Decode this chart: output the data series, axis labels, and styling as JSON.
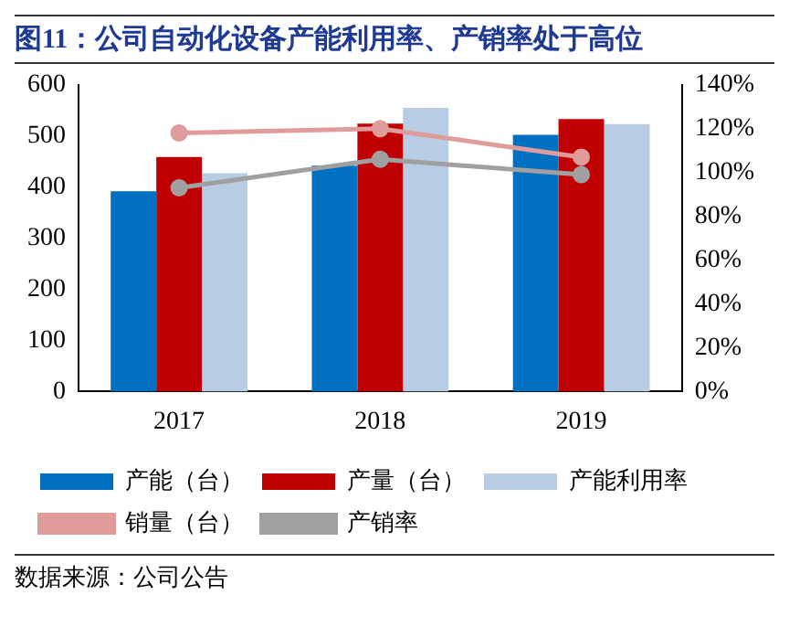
{
  "chart_data": {
    "type": "bar",
    "title": "图11：公司自动化设备产能利用率、产销率处于高位",
    "annotations": [
      "数据来源：公司公告"
    ],
    "categories": [
      "2017",
      "2018",
      "2019"
    ],
    "series": [
      {
        "name": "产能（台）",
        "color": "#0070c0",
        "values": [
          392,
          442,
          502
        ]
      },
      {
        "name": "产量（台）",
        "color": "#c00000",
        "values": [
          459,
          524,
          533
        ]
      },
      {
        "name": "产能利用率",
        "color": "#b8cce4",
        "values": [
          427,
          555,
          523
        ]
      },
      {
        "name": "销量（台）",
        "type": "line",
        "axis": "y2",
        "color": "#e09b9b",
        "values": [
          118,
          120,
          107
        ]
      },
      {
        "name": "产销率",
        "type": "line",
        "axis": "y2",
        "color": "#a0a0a0",
        "values": [
          93,
          106,
          99
        ]
      }
    ],
    "ylim": [
      0,
      600
    ],
    "yticks": [
      0,
      100,
      200,
      300,
      400,
      500,
      600
    ],
    "y2lim": [
      0,
      140
    ],
    "y2ticks": [
      {
        "value": 0,
        "label": "0%"
      },
      {
        "value": 20,
        "label": "20%"
      },
      {
        "value": 40,
        "label": "40%"
      },
      {
        "value": 60,
        "label": "60%"
      },
      {
        "value": 80,
        "label": "80%"
      },
      {
        "value": 100,
        "label": "100%"
      },
      {
        "value": 120,
        "label": "120%"
      },
      {
        "value": 140,
        "label": "140%"
      }
    ],
    "grid": false,
    "legend": "bottom",
    "marker": "circle",
    "line_style": "solid"
  }
}
